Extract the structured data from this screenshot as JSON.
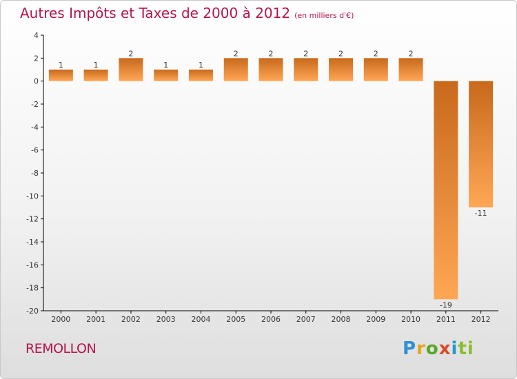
{
  "title": "Autres Impôts et Taxes de 2000 à 2012",
  "unit_note": "(en milliers d'€)",
  "commune": "REMOLLON",
  "logo": {
    "text": "Proxiti",
    "colors": [
      "#2f8fd6",
      "#e9a318",
      "#5aa728",
      "#e0482b",
      "#1f9cc7",
      "#8cbd2b"
    ]
  },
  "colors": {
    "title": "#b5154b",
    "bar_dark": "#c8691c",
    "bar_light": "#ffa755",
    "axis": "#000000",
    "grid": "#aaaaaa",
    "label": "#333333"
  },
  "chart_data": {
    "type": "bar",
    "title": "Autres Impôts et Taxes de 2000 à 2012",
    "subtitle": "(en milliers d'€)",
    "xlabel": "",
    "ylabel": "",
    "categories": [
      "2000",
      "2001",
      "2002",
      "2003",
      "2004",
      "2005",
      "2006",
      "2007",
      "2008",
      "2009",
      "2010",
      "2011",
      "2012"
    ],
    "values": [
      1,
      1,
      2,
      1,
      1,
      2,
      2,
      2,
      2,
      2,
      2,
      -19,
      -11
    ],
    "value_labels": [
      "1",
      "1",
      "2",
      "1",
      "1",
      "2",
      "2",
      "2",
      "2",
      "2",
      "2",
      "-19",
      "-11"
    ],
    "ylim": [
      -20,
      4
    ],
    "yticks": [
      4,
      2,
      0,
      -2,
      -4,
      -6,
      -8,
      -10,
      -12,
      -14,
      -16,
      -18,
      -20
    ],
    "ytick_labels": [
      "4",
      "2",
      "0",
      "-2",
      "-4",
      "-6",
      "-8",
      "-10",
      "-12",
      "-14",
      "-16",
      "-18",
      "-20"
    ],
    "grid": false,
    "legend": "none"
  }
}
